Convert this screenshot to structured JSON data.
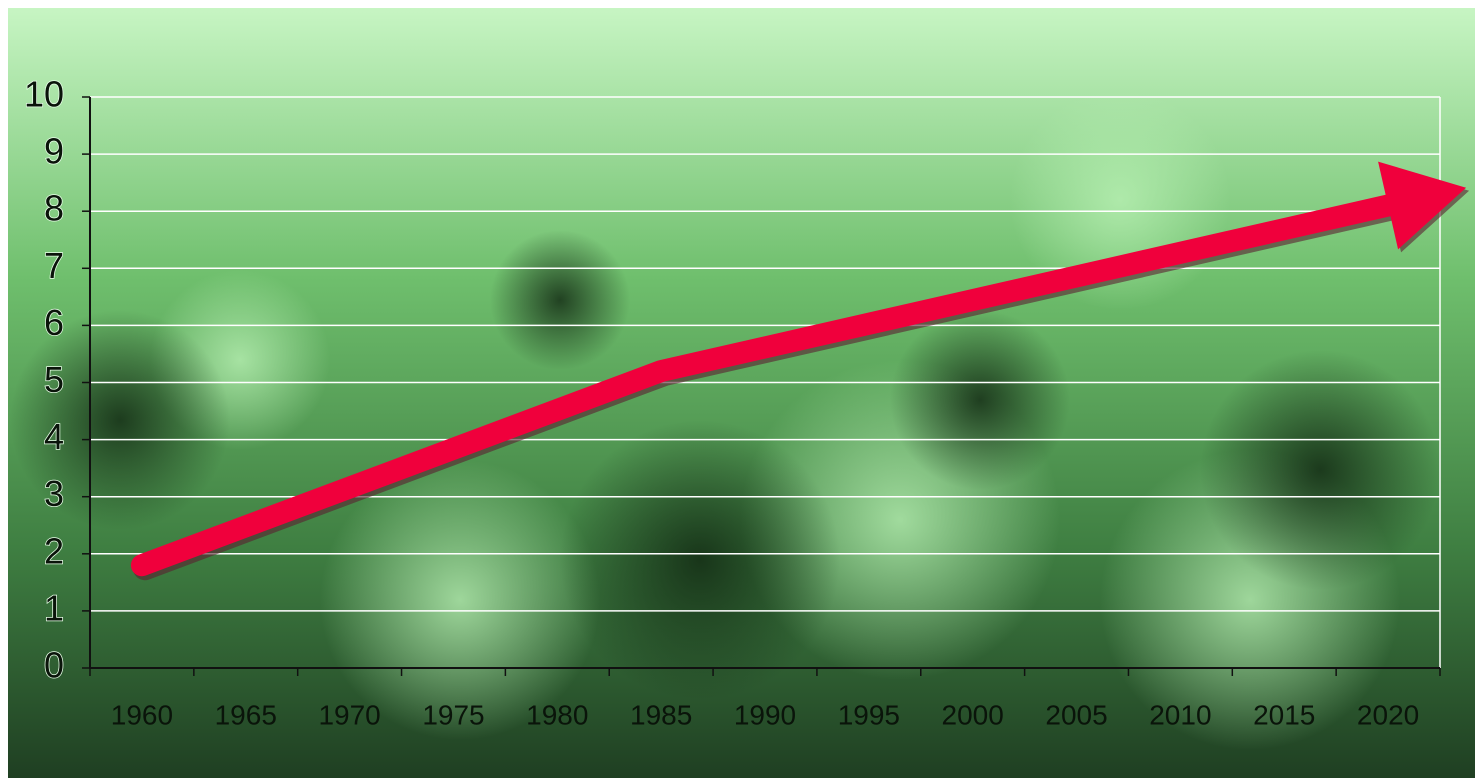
{
  "chart_data": {
    "type": "line",
    "categories": [
      "1960",
      "1965",
      "1970",
      "1975",
      "1980",
      "1985",
      "1990",
      "1995",
      "2000",
      "2005",
      "2010",
      "2015",
      "2020"
    ],
    "series": [
      {
        "color": "#f0003c",
        "x": [
          "1960",
          "1985",
          "2020"
        ],
        "values": [
          1.8,
          5.2,
          8.1
        ]
      }
    ],
    "ylim": [
      0,
      10
    ],
    "yticks": [
      0,
      1,
      2,
      3,
      4,
      5,
      6,
      7,
      8,
      9,
      10
    ],
    "grid": true
  }
}
